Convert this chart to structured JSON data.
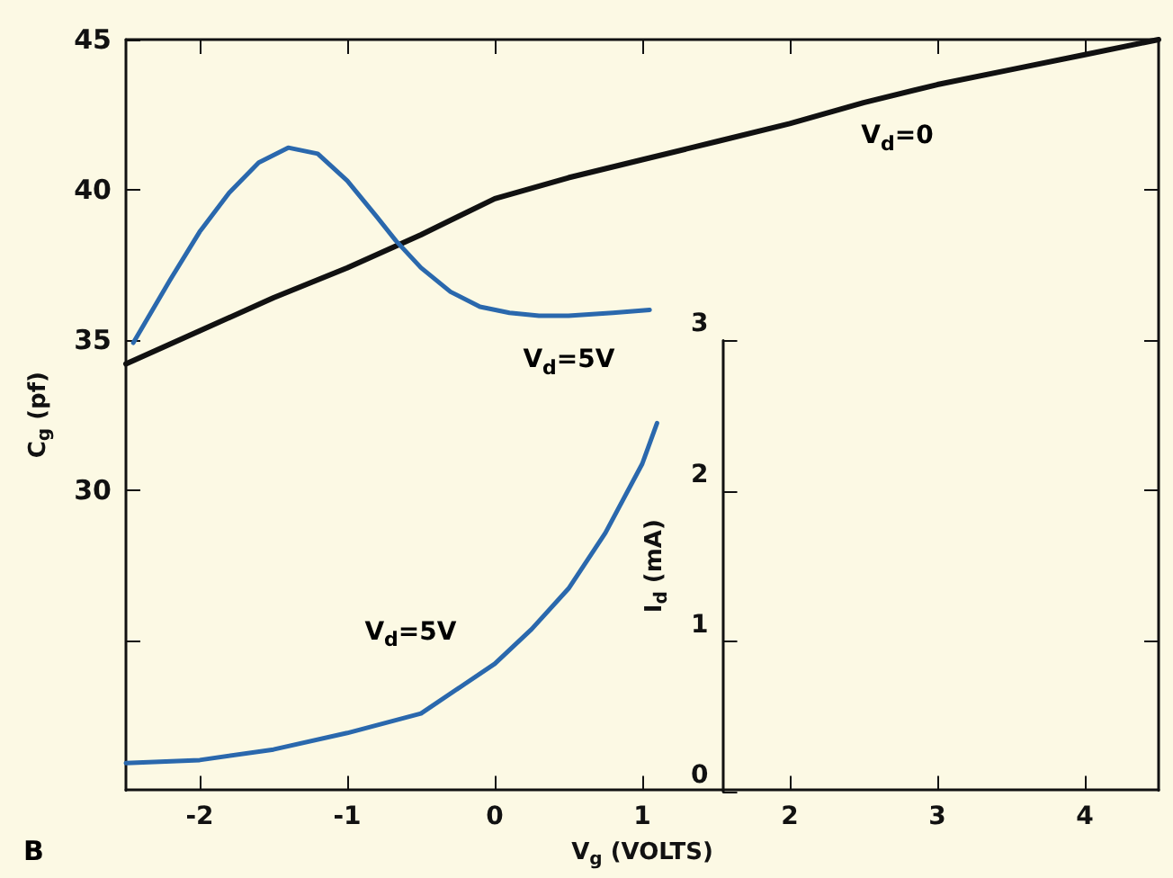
{
  "chart_data": {
    "type": "line",
    "xlabel": "V$_{g}$ (VOLTS)",
    "ylabel": "C$_{g}$ (pf)",
    "y2label": "I$_{d}$ (mA)",
    "xlim": [
      -2.5,
      4.5
    ],
    "xticks": [
      -2,
      -1,
      0,
      1,
      2,
      3,
      4
    ],
    "ylim": [
      20,
      45
    ],
    "yticks": [
      {
        "value": 25,
        "label": null
      },
      30,
      35,
      40,
      45
    ],
    "y2lim": [
      0,
      3
    ],
    "y2ticks": [
      0,
      1,
      2,
      3
    ],
    "grid": false,
    "series": [
      {
        "color": "#111111",
        "x": [
          -2.5,
          -2,
          -1.5,
          -1,
          -0.5,
          0,
          0.5,
          1,
          1.5,
          2,
          2.5,
          3,
          3.5,
          4,
          4.5
        ],
        "values": [
          34.2,
          35.3,
          36.4,
          37.4,
          38.5,
          39.7,
          40.4,
          41.0,
          41.6,
          42.2,
          42.9,
          43.5,
          44.0,
          44.5,
          45.0
        ]
      },
      {
        "color": "#2a68ad",
        "x": [
          -2.45,
          -2.2,
          -2.0,
          -1.8,
          -1.6,
          -1.4,
          -1.2,
          -1.0,
          -0.8,
          -0.67,
          -0.5,
          -0.3,
          -0.1,
          0.1,
          0.3,
          0.5,
          0.8,
          1.05
        ],
        "values": [
          34.9,
          37.0,
          38.6,
          39.9,
          40.9,
          41.4,
          41.2,
          40.3,
          39.1,
          38.3,
          37.4,
          36.6,
          36.1,
          35.9,
          35.8,
          35.8,
          35.9,
          36.0
        ]
      },
      {
        "color": "#2a68ad",
        "axis": "y2",
        "x": [
          -2.5,
          -2,
          -1.5,
          -1,
          -0.5,
          0,
          0.25,
          0.5,
          0.75,
          1,
          1.1
        ],
        "values": [
          0.19,
          0.21,
          0.28,
          0.39,
          0.52,
          0.85,
          1.08,
          1.35,
          1.72,
          2.18,
          2.45
        ]
      }
    ],
    "annotations": [
      "V$_{d}$=0",
      "V$_{d}$=5V",
      "V$_{d}$=5V",
      "B"
    ]
  }
}
